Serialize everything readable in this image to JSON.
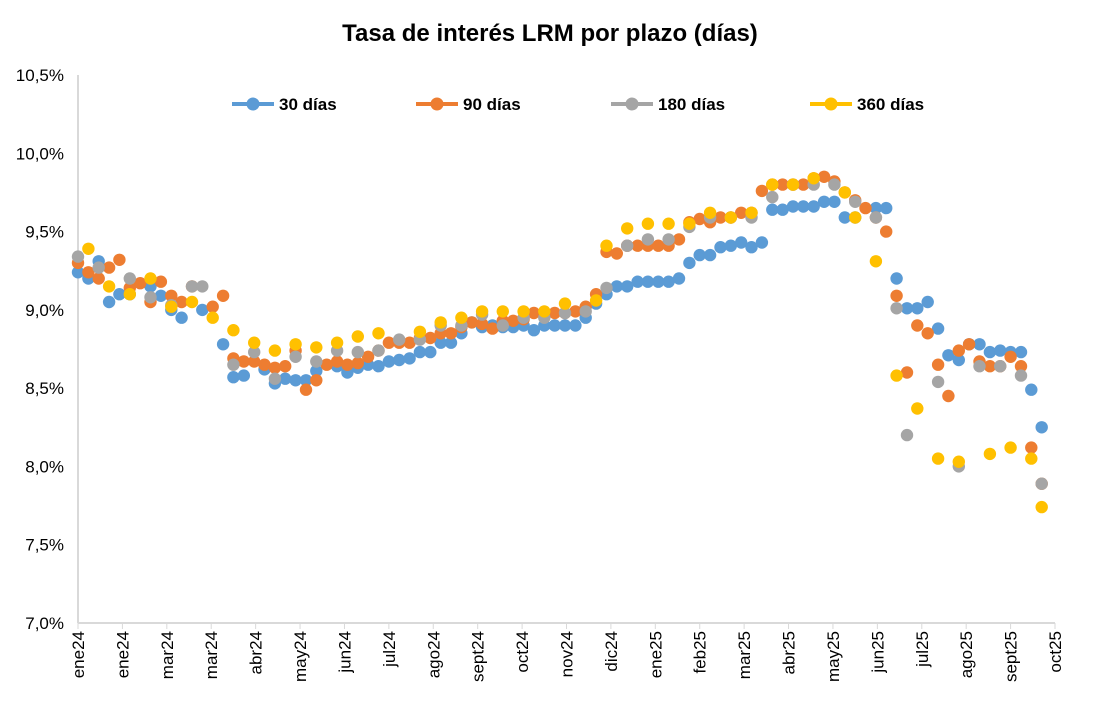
{
  "chart_data": {
    "type": "scatter",
    "title": "Tasa de interés LRM por plazo (días)",
    "xlabel": "",
    "ylabel": "",
    "ylim": [
      7.0,
      10.5
    ],
    "xlim": [
      "2024-01-01",
      "2025-10-22"
    ],
    "x_tick_interval_days": 30,
    "y_ticks": [
      "7,0%",
      "7,5%",
      "8,0%",
      "8,5%",
      "9,0%",
      "9,5%",
      "10,0%",
      "10,5%"
    ],
    "x_ticks": [
      "ene24",
      "ene24",
      "mar24",
      "mar24",
      "abr24",
      "may24",
      "jun24",
      "jul24",
      "ago24",
      "sept24",
      "oct24",
      "nov24",
      "dic24",
      "ene25",
      "feb25",
      "mar25",
      "abr25",
      "may25",
      "jun25",
      "jul25",
      "ago25",
      "sept25",
      "oct25"
    ],
    "grid": false,
    "legend_position": "top",
    "x": [
      "2024-01-01",
      "2024-01-08",
      "2024-01-15",
      "2024-01-22",
      "2024-01-29",
      "2024-02-05",
      "2024-02-12",
      "2024-02-19",
      "2024-02-26",
      "2024-03-04",
      "2024-03-11",
      "2024-03-18",
      "2024-03-25",
      "2024-04-01",
      "2024-04-08",
      "2024-04-15",
      "2024-04-22",
      "2024-04-29",
      "2024-05-06",
      "2024-05-13",
      "2024-05-20",
      "2024-05-27",
      "2024-06-03",
      "2024-06-10",
      "2024-06-17",
      "2024-06-24",
      "2024-07-01",
      "2024-07-08",
      "2024-07-15",
      "2024-07-22",
      "2024-07-29",
      "2024-08-05",
      "2024-08-12",
      "2024-08-19",
      "2024-08-26",
      "2024-09-02",
      "2024-09-09",
      "2024-09-16",
      "2024-09-23",
      "2024-09-30",
      "2024-10-07",
      "2024-10-14",
      "2024-10-21",
      "2024-10-28",
      "2024-11-04",
      "2024-11-11",
      "2024-11-18",
      "2024-11-25",
      "2024-12-02",
      "2024-12-09",
      "2024-12-16",
      "2024-12-23",
      "2024-12-30",
      "2025-01-06",
      "2025-01-13",
      "2025-01-20",
      "2025-01-27",
      "2025-02-03",
      "2025-02-10",
      "2025-02-17",
      "2025-02-24",
      "2025-03-03",
      "2025-03-10",
      "2025-03-17",
      "2025-03-24",
      "2025-03-31",
      "2025-04-07",
      "2025-04-14",
      "2025-04-21",
      "2025-04-28",
      "2025-05-05",
      "2025-05-12",
      "2025-05-19",
      "2025-05-26",
      "2025-06-02",
      "2025-06-09",
      "2025-06-16",
      "2025-06-23",
      "2025-06-30",
      "2025-07-07",
      "2025-07-14",
      "2025-07-21",
      "2025-07-28",
      "2025-08-04",
      "2025-08-11",
      "2025-08-18",
      "2025-08-25",
      "2025-09-01",
      "2025-09-08",
      "2025-09-15",
      "2025-09-22",
      "2025-09-29",
      "2025-10-06",
      "2025-10-13"
    ],
    "series": [
      {
        "name": "30 días",
        "color": "#5B9BD5",
        "values": [
          9.24,
          9.2,
          9.31,
          9.05,
          9.1,
          9.1,
          null,
          9.15,
          9.09,
          9.0,
          8.95,
          null,
          9.0,
          null,
          8.78,
          8.57,
          8.58,
          null,
          8.62,
          8.53,
          8.56,
          8.55,
          8.55,
          8.61,
          null,
          8.64,
          8.6,
          8.63,
          8.65,
          8.64,
          8.67,
          8.68,
          8.69,
          8.73,
          8.73,
          8.79,
          8.79,
          8.85,
          8.92,
          8.89,
          8.9,
          8.89,
          8.89,
          8.9,
          8.87,
          8.9,
          8.9,
          8.9,
          8.9,
          8.95,
          9.04,
          9.1,
          9.15,
          9.15,
          9.18,
          9.18,
          9.18,
          9.18,
          9.2,
          9.3,
          9.35,
          9.35,
          9.4,
          9.41,
          9.43,
          9.4,
          9.43,
          9.64,
          9.64,
          9.66,
          9.66,
          9.66,
          9.69,
          9.69,
          9.59,
          9.59,
          null,
          9.65,
          9.65,
          9.2,
          9.01,
          9.01,
          9.05,
          8.88,
          8.71,
          8.68,
          8.78,
          8.78,
          8.73,
          8.74,
          8.73,
          8.73,
          8.49,
          8.25
        ]
      },
      {
        "name": "90 días",
        "color": "#ED7D31",
        "values": [
          9.3,
          9.24,
          9.2,
          9.27,
          9.32,
          9.14,
          9.17,
          9.05,
          9.18,
          9.09,
          9.05,
          9.15,
          null,
          9.02,
          9.09,
          8.69,
          8.67,
          8.67,
          8.65,
          8.63,
          8.64,
          8.74,
          8.49,
          8.55,
          8.65,
          8.67,
          8.65,
          8.66,
          8.7,
          8.74,
          8.79,
          8.79,
          8.79,
          8.82,
          8.82,
          8.85,
          8.85,
          8.89,
          8.92,
          8.91,
          8.88,
          8.93,
          8.93,
          8.94,
          8.98,
          8.98,
          8.98,
          8.98,
          8.99,
          9.02,
          9.1,
          9.37,
          9.36,
          9.41,
          9.41,
          9.41,
          9.41,
          9.41,
          9.45,
          9.56,
          9.58,
          9.56,
          9.59,
          9.59,
          9.62,
          9.62,
          9.76,
          9.8,
          9.8,
          9.8,
          9.8,
          9.84,
          9.85,
          9.82,
          9.75,
          9.7,
          9.65,
          9.59,
          9.5,
          9.09,
          8.6,
          8.9,
          8.85,
          8.65,
          8.45,
          8.74,
          8.78,
          8.67,
          8.64,
          8.64,
          8.7,
          8.64,
          8.12,
          7.89
        ]
      },
      {
        "name": "180 días",
        "color": "#A5A5A5",
        "values": [
          9.34,
          null,
          9.27,
          null,
          null,
          9.2,
          null,
          9.08,
          null,
          9.03,
          null,
          9.15,
          9.15,
          null,
          null,
          8.65,
          null,
          8.73,
          null,
          8.56,
          null,
          8.7,
          null,
          8.67,
          null,
          8.74,
          null,
          8.73,
          null,
          8.74,
          null,
          8.81,
          null,
          8.81,
          null,
          8.9,
          null,
          8.9,
          null,
          8.97,
          null,
          8.9,
          null,
          8.95,
          null,
          8.95,
          null,
          8.98,
          null,
          8.99,
          null,
          9.14,
          null,
          9.41,
          null,
          9.45,
          null,
          9.45,
          null,
          9.53,
          null,
          9.59,
          null,
          9.59,
          null,
          9.59,
          null,
          9.72,
          null,
          9.8,
          null,
          9.8,
          null,
          9.8,
          null,
          9.69,
          null,
          9.59,
          null,
          9.01,
          8.2,
          null,
          null,
          8.54,
          null,
          8.0,
          null,
          8.64,
          null,
          8.64,
          null,
          8.58,
          null,
          7.89
        ]
      },
      {
        "name": "360 días",
        "color": "#FFC000",
        "values": [
          null,
          9.39,
          null,
          9.15,
          null,
          9.1,
          null,
          9.2,
          null,
          9.02,
          null,
          9.05,
          null,
          8.95,
          null,
          8.87,
          null,
          8.79,
          null,
          8.74,
          null,
          8.78,
          null,
          8.76,
          null,
          8.79,
          null,
          8.83,
          null,
          8.85,
          null,
          null,
          null,
          8.86,
          null,
          8.92,
          null,
          8.95,
          null,
          8.99,
          null,
          8.99,
          null,
          8.99,
          null,
          8.99,
          null,
          9.04,
          null,
          null,
          9.06,
          9.41,
          null,
          9.52,
          null,
          9.55,
          null,
          9.55,
          null,
          9.55,
          null,
          9.62,
          null,
          9.59,
          null,
          9.62,
          null,
          9.8,
          null,
          9.8,
          null,
          9.84,
          null,
          null,
          9.75,
          9.59,
          null,
          9.31,
          null,
          8.58,
          null,
          8.37,
          null,
          8.05,
          null,
          8.03,
          null,
          null,
          8.08,
          null,
          8.12,
          null,
          8.05,
          7.74
        ]
      }
    ]
  }
}
